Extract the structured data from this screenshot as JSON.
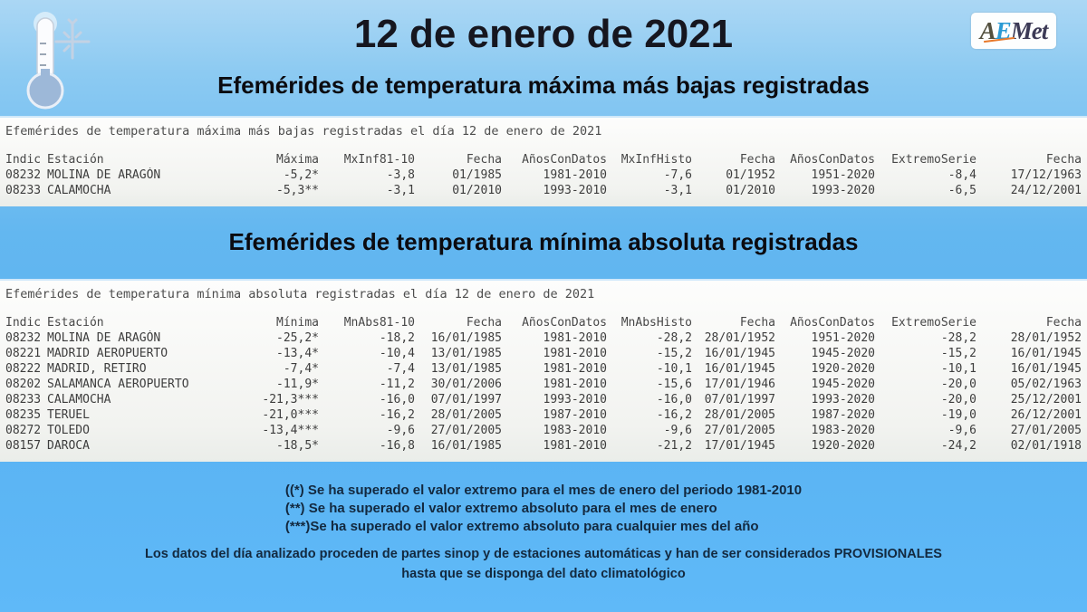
{
  "header": {
    "title": "12 de enero de 2021",
    "logo": {
      "a": "A",
      "e": "E",
      "met": "Met"
    }
  },
  "colors": {
    "sky_top": "#abd7f4",
    "sky_bottom": "#5fb9f8",
    "panel_bg": "#f2f3f0",
    "aemet_blue": "#2a9ad4",
    "aemet_orange": "#e8792b",
    "heading_text": "#0b0b10",
    "note_text": "#13293f"
  },
  "sections": [
    {
      "heading": "Efemérides de temperatura máxima más bajas registradas",
      "caption": "Efemérides de temperatura máxima más bajas registradas el día 12 de enero de 2021",
      "columns": [
        "Indic",
        "Estación",
        "Máxima",
        "MxInf81-10",
        "Fecha",
        "AñosConDatos",
        "MxInfHisto",
        "Fecha",
        "AñosConDatos",
        "ExtremoSerie",
        "Fecha"
      ],
      "rows": [
        [
          "08232",
          "MOLINA DE ARAGÓN",
          "-5,2*",
          "-3,8",
          "01/1985",
          "1981-2010",
          "-7,6",
          "01/1952",
          "1951-2020",
          "-8,4",
          "17/12/1963"
        ],
        [
          "08233",
          "CALAMOCHA",
          "-5,3**",
          "-3,1",
          "01/2010",
          "1993-2010",
          "-3,1",
          "01/2010",
          "1993-2020",
          "-6,5",
          "24/12/2001"
        ]
      ]
    },
    {
      "heading": "Efemérides de temperatura mínima absoluta registradas",
      "caption": "Efemérides de temperatura mínima absoluta registradas el día 12 de enero de 2021",
      "columns": [
        "Indic",
        "Estación",
        "Mínima",
        "MnAbs81-10",
        "Fecha",
        "AñosConDatos",
        "MnAbsHisto",
        "Fecha",
        "AñosConDatos",
        "ExtremoSerie",
        "Fecha"
      ],
      "rows": [
        [
          "08232",
          "MOLINA DE ARAGÓN",
          "-25,2*",
          "-18,2",
          "16/01/1985",
          "1981-2010",
          "-28,2",
          "28/01/1952",
          "1951-2020",
          "-28,2",
          "28/01/1952"
        ],
        [
          "08221",
          "MADRID AEROPUERTO",
          "-13,4*",
          "-10,4",
          "13/01/1985",
          "1981-2010",
          "-15,2",
          "16/01/1945",
          "1945-2020",
          "-15,2",
          "16/01/1945"
        ],
        [
          "08222",
          "MADRID, RETIRO",
          "-7,4*",
          "-7,4",
          "13/01/1985",
          "1981-2010",
          "-10,1",
          "16/01/1945",
          "1920-2020",
          "-10,1",
          "16/01/1945"
        ],
        [
          "08202",
          "SALAMANCA AEROPUERTO",
          "-11,9*",
          "-11,2",
          "30/01/2006",
          "1981-2010",
          "-15,6",
          "17/01/1946",
          "1945-2020",
          "-20,0",
          "05/02/1963"
        ],
        [
          "08233",
          "CALAMOCHA",
          "-21,3***",
          "-16,0",
          "07/01/1997",
          "1993-2010",
          "-16,0",
          "07/01/1997",
          "1993-2020",
          "-20,0",
          "25/12/2001"
        ],
        [
          "08235",
          "TERUEL",
          "-21,0***",
          "-16,2",
          "28/01/2005",
          "1987-2010",
          "-16,2",
          "28/01/2005",
          "1987-2020",
          "-19,0",
          "26/12/2001"
        ],
        [
          "08272",
          "TOLEDO",
          "-13,4***",
          "-9,6",
          "27/01/2005",
          "1983-2010",
          "-9,6",
          "27/01/2005",
          "1983-2020",
          "-9,6",
          "27/01/2005"
        ],
        [
          "08157",
          "DAROCA",
          "-18,5*",
          "-16,8",
          "16/01/1985",
          "1981-2010",
          "-21,2",
          "17/01/1945",
          "1920-2020",
          "-24,2",
          "02/01/1918"
        ]
      ]
    }
  ],
  "notes": [
    "((*) Se ha superado el valor extremo para el mes de enero del periodo 1981-2010",
    "(**) Se ha superado el valor extremo absoluto para el mes de enero",
    "(***)Se ha superado el valor extremo absoluto para cualquier mes del año"
  ],
  "disclaimer": {
    "line1": "Los datos del día analizado proceden de partes sinop y de estaciones automáticas y han de ser considerados PROVISIONALES",
    "line2": "hasta que se disponga del dato climatológico"
  }
}
